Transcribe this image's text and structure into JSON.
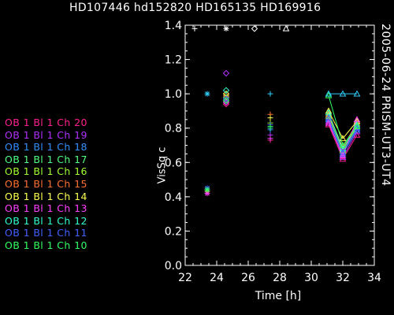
{
  "chart_data": {
    "type": "line",
    "title": "HD107446 hd152820 HD165135 HD169916",
    "side_label": "2005-06-24 PRISM-UT3-UT4",
    "xlabel": "Time [h]",
    "ylabel": "VisSq c",
    "xlim": [
      22,
      34
    ],
    "ylim": [
      0.0,
      1.4
    ],
    "xticks": [
      22,
      24,
      26,
      28,
      30,
      32,
      34
    ],
    "yticks": [
      0.0,
      0.2,
      0.4,
      0.6,
      0.8,
      1.0,
      1.2,
      1.4
    ],
    "legend_position": "left",
    "calibrator_markers": [
      {
        "x": 22.6,
        "y": 1.38,
        "symbol": "+",
        "color": "#ffffff"
      },
      {
        "x": 24.6,
        "y": 1.38,
        "symbol": "*",
        "color": "#ffffff"
      },
      {
        "x": 26.4,
        "y": 1.38,
        "symbol": "diamond",
        "color": "#ffffff"
      },
      {
        "x": 28.4,
        "y": 1.38,
        "symbol": "triangle",
        "color": "#ffffff"
      }
    ],
    "series": [
      {
        "name": "OB 1 Bl 1 Ch 20",
        "color": "#ff2090",
        "points": [
          {
            "x": 23.4,
            "y": 0.42,
            "symbol": "*"
          },
          {
            "x": 24.6,
            "y": 0.94,
            "symbol": "diamond"
          },
          {
            "x": 27.4,
            "y": 0.73,
            "symbol": "+"
          }
        ],
        "line": [
          {
            "x": 31.1,
            "y": 0.82
          },
          {
            "x": 32.0,
            "y": 0.62
          },
          {
            "x": 32.9,
            "y": 0.76
          }
        ]
      },
      {
        "name": "OB 1 Bl 1 Ch 19",
        "color": "#b030ff",
        "points": [
          {
            "x": 23.4,
            "y": 0.43,
            "symbol": "*"
          },
          {
            "x": 24.6,
            "y": 1.12,
            "symbol": "diamond"
          },
          {
            "x": 27.4,
            "y": 0.76,
            "symbol": "+"
          }
        ],
        "line": [
          {
            "x": 31.1,
            "y": 0.84
          },
          {
            "x": 32.0,
            "y": 0.63
          },
          {
            "x": 32.9,
            "y": 0.78
          }
        ]
      },
      {
        "name": "OB 1 Bl 1 Ch 18",
        "color": "#3090ff",
        "points": [
          {
            "x": 23.4,
            "y": 0.44,
            "symbol": "*"
          },
          {
            "x": 24.6,
            "y": 0.96,
            "symbol": "diamond"
          },
          {
            "x": 27.4,
            "y": 0.79,
            "symbol": "+"
          }
        ],
        "line": [
          {
            "x": 31.1,
            "y": 0.85
          },
          {
            "x": 32.0,
            "y": 0.65
          },
          {
            "x": 32.9,
            "y": 0.79
          }
        ]
      },
      {
        "name": "OB 1 Bl 1 Ch 17",
        "color": "#50ff80",
        "points": [
          {
            "x": 23.4,
            "y": 0.44,
            "symbol": "*"
          },
          {
            "x": 24.6,
            "y": 0.98,
            "symbol": "diamond"
          },
          {
            "x": 27.4,
            "y": 0.81,
            "symbol": "+"
          }
        ],
        "line": [
          {
            "x": 31.1,
            "y": 0.86
          },
          {
            "x": 32.0,
            "y": 0.66
          },
          {
            "x": 32.9,
            "y": 0.8
          }
        ]
      },
      {
        "name": "OB 1 Bl 1 Ch 16",
        "color": "#a0ff30",
        "points": [
          {
            "x": 23.4,
            "y": 0.44,
            "symbol": "*"
          },
          {
            "x": 24.6,
            "y": 0.97,
            "symbol": "diamond"
          },
          {
            "x": 27.4,
            "y": 0.83,
            "symbol": "+"
          }
        ],
        "line": [
          {
            "x": 31.1,
            "y": 0.87
          },
          {
            "x": 32.0,
            "y": 0.67
          },
          {
            "x": 32.9,
            "y": 0.81
          }
        ]
      },
      {
        "name": "OB 1 Bl 1 Ch 15",
        "color": "#ff7030",
        "points": [
          {
            "x": 23.4,
            "y": 0.43,
            "symbol": "*"
          },
          {
            "x": 24.6,
            "y": 0.99,
            "symbol": "diamond"
          },
          {
            "x": 27.4,
            "y": 0.88,
            "symbol": "+"
          }
        ],
        "line": [
          {
            "x": 31.1,
            "y": 0.88
          },
          {
            "x": 32.0,
            "y": 0.69
          },
          {
            "x": 32.9,
            "y": 0.83
          }
        ]
      },
      {
        "name": "OB 1 Bl 1 Ch 14",
        "color": "#ffff50",
        "points": [
          {
            "x": 23.4,
            "y": 0.44,
            "symbol": "*"
          },
          {
            "x": 24.6,
            "y": 1.0,
            "symbol": "diamond"
          },
          {
            "x": 27.4,
            "y": 0.86,
            "symbol": "+"
          }
        ],
        "line": [
          {
            "x": 31.1,
            "y": 0.9
          },
          {
            "x": 32.0,
            "y": 0.74
          },
          {
            "x": 32.9,
            "y": 0.84
          }
        ]
      },
      {
        "name": "OB 1 Bl 1 Ch 13",
        "color": "#ff40ff",
        "points": [
          {
            "x": 23.4,
            "y": 0.42,
            "symbol": "*"
          },
          {
            "x": 24.6,
            "y": 0.95,
            "symbol": "diamond"
          },
          {
            "x": 27.4,
            "y": 0.74,
            "symbol": "+"
          }
        ],
        "line": [
          {
            "x": 31.1,
            "y": 0.83
          },
          {
            "x": 32.0,
            "y": 0.64
          },
          {
            "x": 32.9,
            "y": 0.85
          }
        ]
      },
      {
        "name": "OB 1 Bl 1 Ch 12",
        "color": "#30ffd0",
        "points": [
          {
            "x": 23.4,
            "y": 0.45,
            "symbol": "*"
          },
          {
            "x": 24.6,
            "y": 1.02,
            "symbol": "diamond"
          },
          {
            "x": 27.4,
            "y": 0.8,
            "symbol": "+"
          }
        ],
        "line": [
          {
            "x": 31.1,
            "y": 0.89
          },
          {
            "x": 32.0,
            "y": 0.68
          },
          {
            "x": 32.9,
            "y": 0.82
          }
        ]
      },
      {
        "name": "OB 1 Bl 1 Ch 11",
        "color": "#4060ff",
        "points": [
          {
            "x": 23.4,
            "y": 0.45,
            "symbol": "*"
          },
          {
            "x": 24.6,
            "y": 0.97,
            "symbol": "diamond"
          },
          {
            "x": 27.4,
            "y": 0.82,
            "symbol": "+"
          }
        ],
        "line": [
          {
            "x": 31.1,
            "y": 0.86
          },
          {
            "x": 32.0,
            "y": 0.66
          },
          {
            "x": 32.9,
            "y": 0.8
          }
        ]
      },
      {
        "name": "OB 1 Bl 1 Ch 10",
        "color": "#30ff60",
        "points": [
          {
            "x": 23.4,
            "y": 0.44,
            "symbol": "*"
          },
          {
            "x": 24.6,
            "y": 0.96,
            "symbol": "diamond"
          },
          {
            "x": 27.4,
            "y": 0.81,
            "symbol": "+"
          }
        ],
        "line": [
          {
            "x": 31.1,
            "y": 0.99
          },
          {
            "x": 32.0,
            "y": 0.7
          },
          {
            "x": 32.9,
            "y": 0.81
          }
        ]
      },
      {
        "name": "",
        "color": "#30d0ff",
        "points": [
          {
            "x": 23.4,
            "y": 1.0,
            "symbol": "*"
          },
          {
            "x": 27.4,
            "y": 1.0,
            "symbol": "+"
          }
        ],
        "line": [
          {
            "x": 31.1,
            "y": 1.0
          },
          {
            "x": 32.0,
            "y": 1.0
          },
          {
            "x": 32.9,
            "y": 1.0
          }
        ]
      }
    ]
  }
}
